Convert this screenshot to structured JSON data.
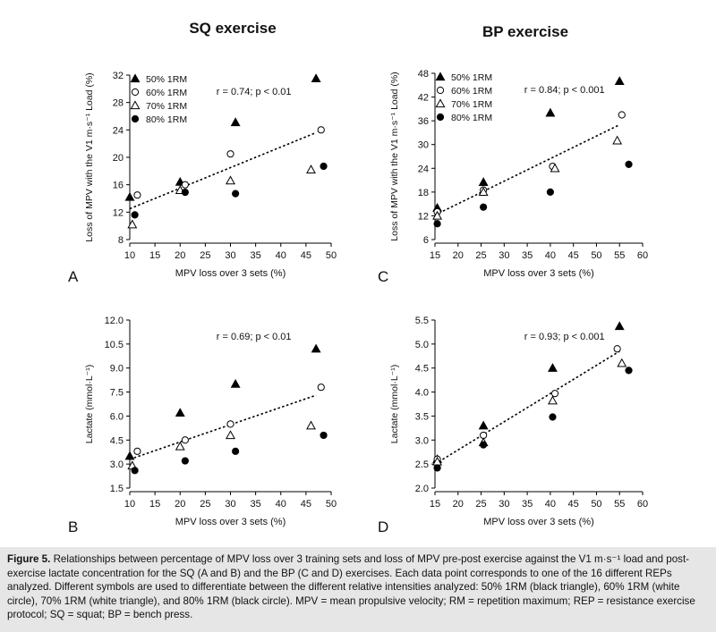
{
  "figure": {
    "titles": {
      "left": "SQ exercise",
      "right": "BP exercise"
    },
    "caption_label": "Figure 5.",
    "caption_text": "Relationships between percentage of MPV loss over 3 training sets and loss of MPV pre-post exercise against the V1 m·s⁻¹ load and post-exercise lactate concentration for the SQ (A and B) and the BP (C and D) exercises. Each data point corresponds to one of the 16 different REPs analyzed. Different symbols are used to differentiate between the different relative intensities analyzed: 50% 1RM (black triangle), 60% 1RM (white circle), 70% 1RM (white triangle), and 80% 1RM (black circle). MPV = mean propulsive velocity; RM = repetition maximum; REP = resistance exercise protocol; SQ = squat; BP = bench press.",
    "legend_markers": {
      "50% 1RM": "filled-triangle",
      "60% 1RM": "open-circle",
      "70% 1RM": "open-triangle",
      "80% 1RM": "filled-circle"
    }
  },
  "chart_data": [
    {
      "panel": "A",
      "type": "scatter",
      "xlabel": "MPV loss over 3 sets (%)",
      "ylabel": "Loss of MPV with the V1 m·s⁻¹ Load (%)",
      "xlim": [
        10,
        50
      ],
      "ylim": [
        8,
        32
      ],
      "xticks": [
        10,
        15,
        20,
        25,
        30,
        35,
        40,
        45,
        50
      ],
      "yticks": [
        8,
        12,
        16,
        20,
        24,
        28,
        32
      ],
      "annotation": "r = 0.74; p < 0.01",
      "legend_position": "top-left",
      "series": [
        {
          "name": "50% 1RM",
          "points": [
            [
              10,
              14.2
            ],
            [
              20,
              16.4
            ],
            [
              31,
              25.1
            ],
            [
              47,
              31.5
            ]
          ]
        },
        {
          "name": "60% 1RM",
          "points": [
            [
              11.5,
              14.5
            ],
            [
              21,
              16.0
            ],
            [
              30,
              20.5
            ],
            [
              48,
              24.0
            ]
          ]
        },
        {
          "name": "70% 1RM",
          "points": [
            [
              10.5,
              10.2
            ],
            [
              20,
              15.2
            ],
            [
              30,
              16.6
            ],
            [
              46,
              18.2
            ]
          ]
        },
        {
          "name": "80% 1RM",
          "points": [
            [
              11,
              11.6
            ],
            [
              21,
              14.9
            ],
            [
              31,
              14.7
            ],
            [
              48.5,
              18.7
            ]
          ]
        }
      ],
      "trend": [
        [
          10,
          12.5
        ],
        [
          47,
          23.6
        ]
      ]
    },
    {
      "panel": "B",
      "type": "scatter",
      "xlabel": "MPV loss over 3 sets (%)",
      "ylabel": "Lactate (mmol·L⁻¹)",
      "xlim": [
        10,
        50
      ],
      "ylim": [
        1.5,
        12.0
      ],
      "xticks": [
        10,
        15,
        20,
        25,
        30,
        35,
        40,
        45,
        50
      ],
      "yticks": [
        1.5,
        3.0,
        4.5,
        6.0,
        7.5,
        9.0,
        10.5,
        12.0
      ],
      "annotation": "r = 0.69; p < 0.01",
      "series": [
        {
          "name": "50% 1RM",
          "points": [
            [
              10,
              3.5
            ],
            [
              20,
              6.2
            ],
            [
              31,
              8.0
            ],
            [
              47,
              10.2
            ]
          ]
        },
        {
          "name": "60% 1RM",
          "points": [
            [
              11.5,
              3.8
            ],
            [
              21,
              4.5
            ],
            [
              30,
              5.5
            ],
            [
              48,
              7.8
            ]
          ]
        },
        {
          "name": "70% 1RM",
          "points": [
            [
              10.5,
              2.9
            ],
            [
              20,
              4.1
            ],
            [
              30,
              4.8
            ],
            [
              46,
              5.4
            ]
          ]
        },
        {
          "name": "80% 1RM",
          "points": [
            [
              11,
              2.6
            ],
            [
              21,
              3.2
            ],
            [
              31,
              3.8
            ],
            [
              48.5,
              4.8
            ]
          ]
        }
      ],
      "trend": [
        [
          10,
          3.3
        ],
        [
          47,
          7.3
        ]
      ]
    },
    {
      "panel": "C",
      "type": "scatter",
      "xlabel": "MPV loss over 3 sets (%)",
      "ylabel": "Loss of MPV with the V1 m·s⁻¹ Load (%)",
      "xlim": [
        15,
        60
      ],
      "ylim": [
        6,
        48
      ],
      "xticks": [
        15,
        20,
        25,
        30,
        35,
        40,
        45,
        50,
        55,
        60
      ],
      "yticks": [
        6,
        12,
        18,
        24,
        30,
        36,
        42,
        48
      ],
      "annotation": "r = 0.84; p < 0.001",
      "legend_position": "top-left",
      "series": [
        {
          "name": "50% 1RM",
          "points": [
            [
              15.5,
              14.0
            ],
            [
              25.5,
              20.5
            ],
            [
              40,
              38.0
            ],
            [
              55,
              46.0
            ]
          ]
        },
        {
          "name": "60% 1RM",
          "points": [
            [
              15.5,
              13.0
            ],
            [
              25.5,
              18.5
            ],
            [
              40.5,
              24.5
            ],
            [
              55.5,
              37.5
            ]
          ]
        },
        {
          "name": "70% 1RM",
          "points": [
            [
              15.5,
              12.0
            ],
            [
              25.5,
              18.0
            ],
            [
              41,
              24.0
            ],
            [
              54.5,
              31.0
            ]
          ]
        },
        {
          "name": "80% 1RM",
          "points": [
            [
              15.5,
              10.0
            ],
            [
              25.5,
              14.2
            ],
            [
              40,
              18.0
            ],
            [
              57,
              25.0
            ]
          ]
        }
      ],
      "trend": [
        [
          15,
          12.2
        ],
        [
          55,
          35.0
        ]
      ]
    },
    {
      "panel": "D",
      "type": "scatter",
      "xlabel": "MPV loss over 3 sets (%)",
      "ylabel": "Lactate (mmol·L⁻¹)",
      "xlim": [
        15,
        60
      ],
      "ylim": [
        2.0,
        5.5
      ],
      "xticks": [
        15,
        20,
        25,
        30,
        35,
        40,
        45,
        50,
        55,
        60
      ],
      "yticks": [
        2.0,
        2.5,
        3.0,
        3.5,
        4.0,
        4.5,
        5.0,
        5.5
      ],
      "annotation": "r = 0.93; p < 0.001",
      "series": [
        {
          "name": "50% 1RM",
          "points": [
            [
              15.5,
              2.6
            ],
            [
              25.5,
              3.3
            ],
            [
              40.5,
              4.5
            ],
            [
              55,
              5.37
            ]
          ]
        },
        {
          "name": "60% 1RM",
          "points": [
            [
              15.5,
              2.6
            ],
            [
              25.5,
              3.1
            ],
            [
              41,
              3.97
            ],
            [
              54.5,
              4.9
            ]
          ]
        },
        {
          "name": "70% 1RM",
          "points": [
            [
              15.5,
              2.55
            ],
            [
              25.5,
              2.95
            ],
            [
              40.5,
              3.82
            ],
            [
              55.5,
              4.6
            ]
          ]
        },
        {
          "name": "80% 1RM",
          "points": [
            [
              15.5,
              2.42
            ],
            [
              25.5,
              2.9
            ],
            [
              40.5,
              3.48
            ],
            [
              57,
              4.45
            ]
          ]
        }
      ],
      "trend": [
        [
          15,
          2.5
        ],
        [
          55,
          4.85
        ]
      ]
    }
  ]
}
